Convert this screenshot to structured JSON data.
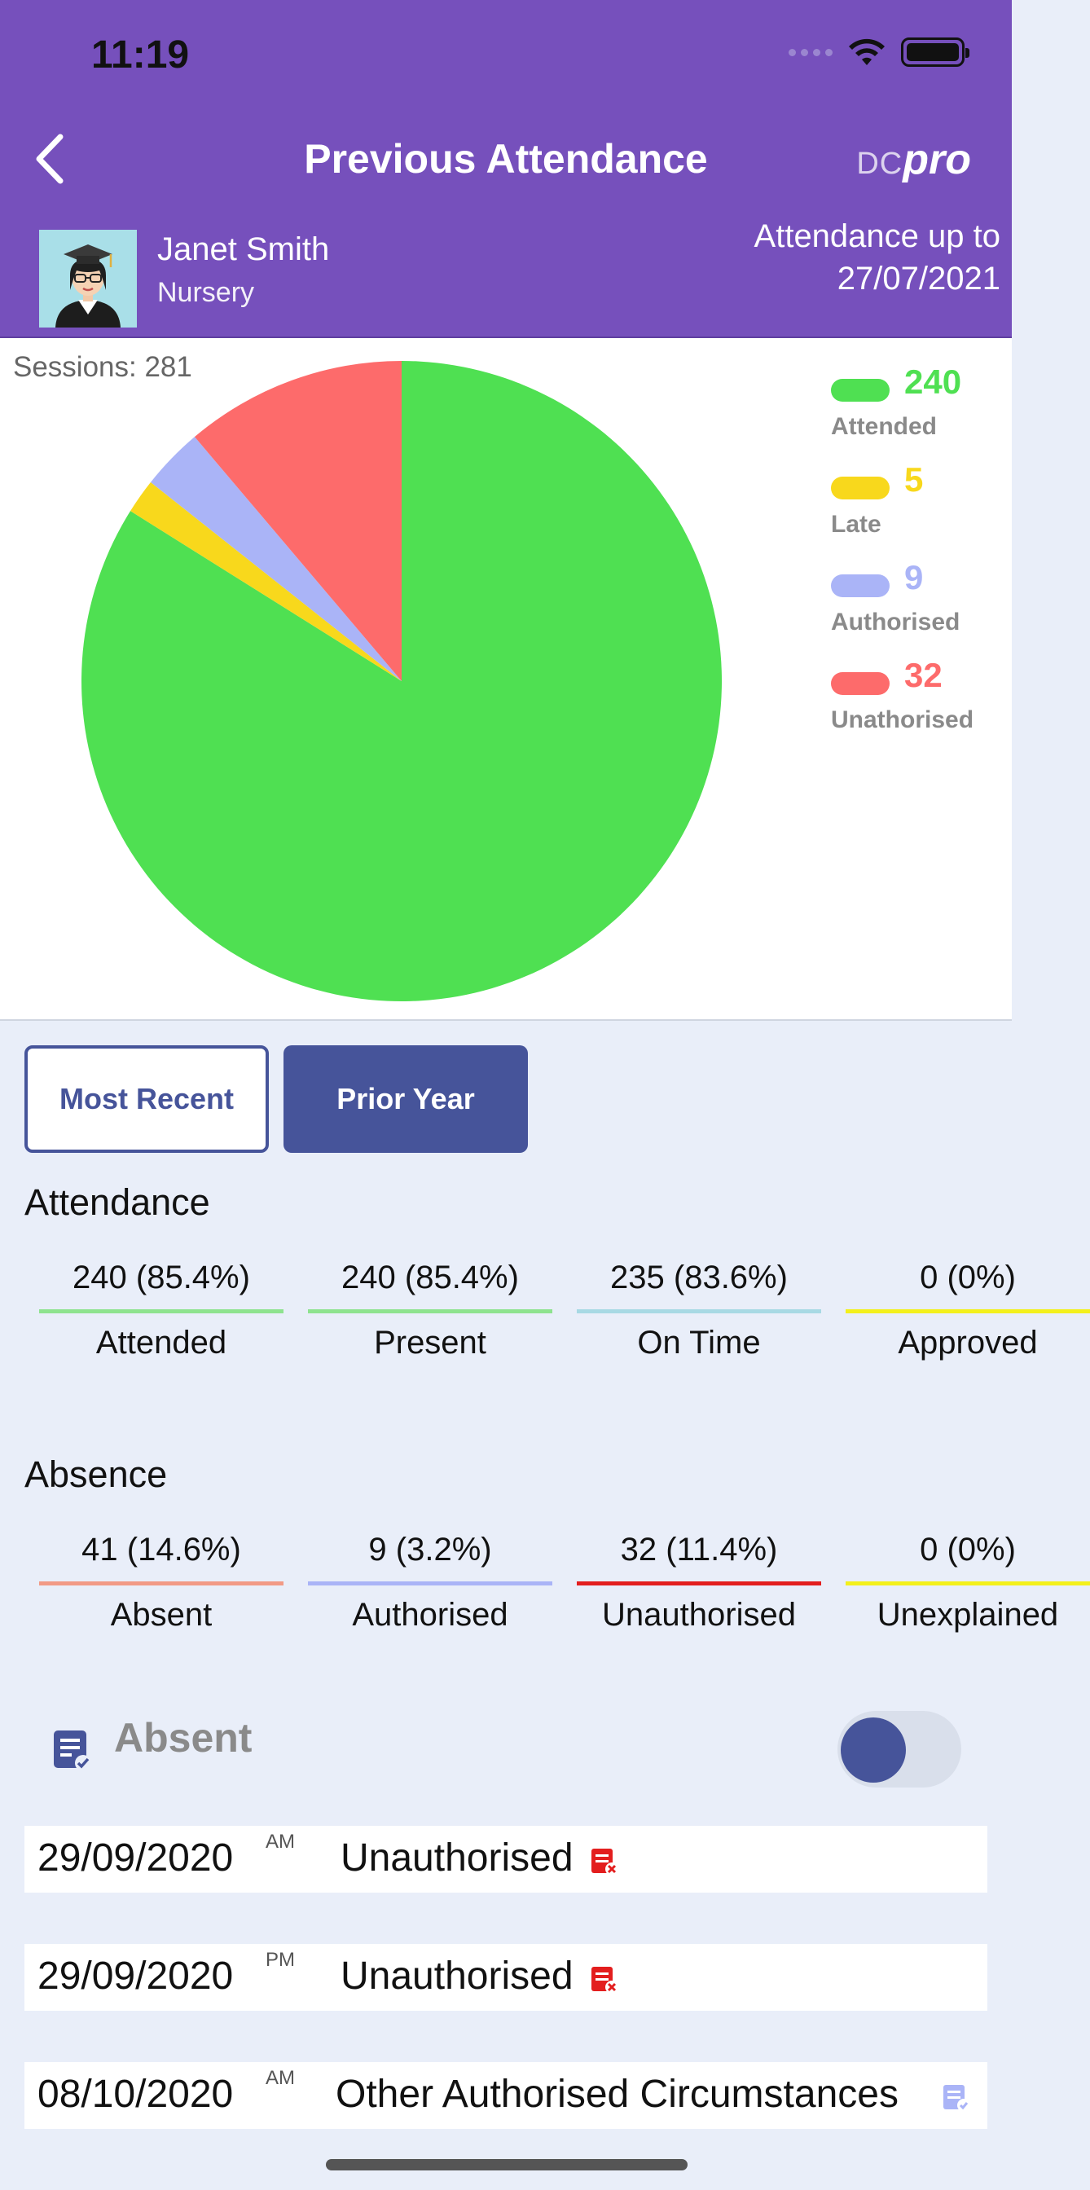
{
  "status_bar": {
    "time": "11:19"
  },
  "header": {
    "title": "Previous Attendance",
    "brand_dc": "DC",
    "brand_pro": "pro",
    "student_name": "Janet Smith",
    "student_class": "Nursery",
    "attendance_upto_line1": "Attendance up to",
    "attendance_upto_line2": "27/07/2021"
  },
  "chart": {
    "sessions_label": "Sessions: 281"
  },
  "chart_data": {
    "type": "pie",
    "total_sessions": 281,
    "slices": [
      {
        "label": "Attended",
        "value": 240,
        "color": "#4fe052"
      },
      {
        "label": "Late",
        "value": 5,
        "color": "#f8d81c"
      },
      {
        "label": "Authorised",
        "value": 9,
        "color": "#aab4f7"
      },
      {
        "label": "Unathorised",
        "value": 32,
        "color": "#fd6b6b"
      }
    ],
    "legend_position": "right"
  },
  "tabs": {
    "most_recent": "Most Recent",
    "prior_year": "Prior Year",
    "selected": "Prior Year"
  },
  "attendance": {
    "title": "Attendance",
    "items": [
      {
        "value": "240 (85.4%)",
        "label": "Attended",
        "color": "#8ee38f"
      },
      {
        "value": "240 (85.4%)",
        "label": "Present",
        "color": "#8ee38f"
      },
      {
        "value": "235 (83.6%)",
        "label": "On Time",
        "color": "#a8d9e4"
      },
      {
        "value": "0 (0%)",
        "label": "Approved",
        "color": "#f3f01c"
      }
    ]
  },
  "absence": {
    "title": "Absence",
    "items": [
      {
        "value": "41 (14.6%)",
        "label": "Absent",
        "color": "#f29a86"
      },
      {
        "value": "9 (3.2%)",
        "label": "Authorised",
        "color": "#aab4f7"
      },
      {
        "value": "32 (11.4%)",
        "label": "Unauthorised",
        "color": "#e31e1e"
      },
      {
        "value": "0 (0%)",
        "label": "Unexplained",
        "color": "#f3f01c"
      }
    ]
  },
  "absent_list": {
    "title": "Absent",
    "toggle_on": false,
    "rows": [
      {
        "date": "29/09/2020",
        "session": "AM",
        "reason": "Unauthorised",
        "icon": "unauthorised-icon"
      },
      {
        "date": "29/09/2020",
        "session": "PM",
        "reason": "Unauthorised",
        "icon": "unauthorised-icon"
      },
      {
        "date": "08/10/2020",
        "session": "AM",
        "reason": "Other Authorised Circumstances",
        "icon": "authorised-note-icon"
      }
    ]
  }
}
